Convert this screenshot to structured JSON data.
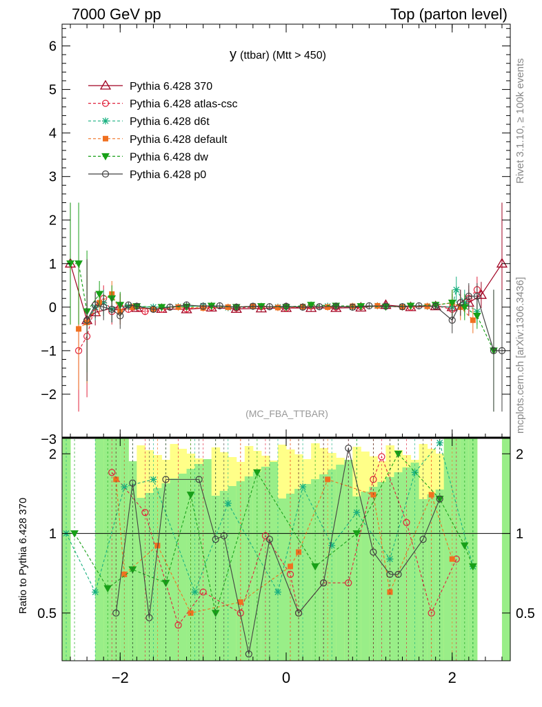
{
  "header": {
    "left": "7000 GeV pp",
    "right": "Top (parton level)"
  },
  "side_labels": {
    "rivet": "Rivet 3.1.10, ≥ 100k events",
    "mcplots": "mcplots.cern.ch [arXiv:1306.3436]"
  },
  "chart_data": {
    "type": "line",
    "title": "y (ttbar) (Mtt > 450)",
    "title_main": "y",
    "title_sub": "(ttbar) (Mtt > 450)",
    "watermark": "(MC_FBA_TTBAR)",
    "xlim": [
      -2.7,
      2.7
    ],
    "ylim": [
      -3,
      6.5
    ],
    "x_ticks": [
      -2,
      0,
      2
    ],
    "x_tick_labels": [
      "−2",
      "0",
      "2"
    ],
    "y_ticks": [
      -2,
      -1,
      0,
      1,
      2,
      3,
      4,
      5,
      6
    ],
    "y_tick_labels": [
      "−2",
      "−1",
      "0",
      "1",
      "2",
      "3",
      "4",
      "5",
      "6"
    ],
    "y_bottom_edge_label": "−3",
    "legend_position": "top-left",
    "series": [
      {
        "name": "Pythia 6.428 370",
        "color": "#a00020",
        "marker": "triangle",
        "x": [
          -2.6,
          -2.4,
          -2.3,
          -2.0,
          -1.8,
          -1.5,
          -1.2,
          -0.9,
          -0.6,
          -0.3,
          0,
          0.3,
          0.6,
          0.9,
          1.2,
          1.5,
          1.8,
          2.0,
          2.2,
          2.35,
          2.6
        ],
        "y": [
          1.0,
          -0.3,
          -0.12,
          0.02,
          -0.02,
          -0.04,
          -0.05,
          -0.01,
          -0.04,
          -0.03,
          -0.02,
          -0.02,
          -0.02,
          -0.01,
          0.05,
          0.0,
          0.02,
          0.0,
          0.1,
          0.28,
          1.0
        ]
      },
      {
        "name": "Pythia 6.428 atlas-csc",
        "color": "#e0203a",
        "marker": "circle-open",
        "x": [
          -2.5,
          -2.4,
          -2.3,
          -2.2,
          -2.1,
          -2.0,
          -1.9,
          -1.7,
          -1.5,
          -1.2,
          -0.9,
          -0.6,
          -0.3,
          0,
          0.3,
          0.6,
          0.9,
          1.2,
          1.5,
          1.8,
          2.0,
          2.1,
          2.2,
          2.3
        ],
        "y": [
          -1.0,
          -0.67,
          0.05,
          0.2,
          -0.1,
          0.0,
          -0.05,
          -0.1,
          -0.05,
          -0.04,
          0.0,
          -0.02,
          0.01,
          -0.02,
          0.02,
          0.0,
          0.01,
          0.02,
          0.0,
          0.03,
          -0.05,
          0.1,
          0.2,
          0.4
        ]
      },
      {
        "name": "Pythia 6.428 d6t",
        "color": "#18b080",
        "marker": "star",
        "x": [
          -2.4,
          -2.3,
          -2.2,
          -2.1,
          -1.9,
          -1.6,
          -1.3,
          -1.0,
          -0.7,
          -0.4,
          -0.1,
          0.2,
          0.5,
          0.8,
          1.1,
          1.4,
          1.7,
          2.0,
          2.05,
          2.15,
          2.3
        ],
        "y": [
          -0.35,
          0.0,
          0.1,
          -0.05,
          0.02,
          0.0,
          0.01,
          0.03,
          -0.01,
          0.02,
          0.0,
          0.01,
          0.02,
          0.0,
          0.03,
          0.01,
          0.02,
          0.0,
          0.4,
          0.1,
          -0.1
        ]
      },
      {
        "name": "Pythia 6.428 default",
        "color": "#f07020",
        "marker": "square",
        "x": [
          -2.5,
          -2.4,
          -2.25,
          -2.1,
          -2.0,
          -1.85,
          -1.6,
          -1.3,
          -1.0,
          -0.7,
          -0.4,
          -0.1,
          0.2,
          0.5,
          0.8,
          1.1,
          1.4,
          1.7,
          2.0,
          2.1,
          2.25
        ],
        "y": [
          -0.5,
          -0.35,
          0.1,
          0.3,
          -0.1,
          0.0,
          -0.05,
          0.0,
          -0.02,
          0.0,
          0.02,
          -0.01,
          0.01,
          0.0,
          0.02,
          0.03,
          0.0,
          0.02,
          0.1,
          0.0,
          -0.3
        ]
      },
      {
        "name": "Pythia 6.428 dw",
        "color": "#18a018",
        "marker": "triangle-down",
        "x": [
          -2.6,
          -2.5,
          -2.4,
          -2.25,
          -2.1,
          -2.0,
          -1.8,
          -1.5,
          -1.2,
          -0.9,
          -0.6,
          -0.3,
          0,
          0.3,
          0.6,
          0.9,
          1.2,
          1.5,
          1.8,
          2.0,
          2.15,
          2.3,
          2.5
        ],
        "y": [
          1.0,
          1.0,
          -0.1,
          0.3,
          0.2,
          0.05,
          0.02,
          0.0,
          0.01,
          0.03,
          0.0,
          0.02,
          0.0,
          0.05,
          0.03,
          0.02,
          0.01,
          0.03,
          0.05,
          0.1,
          0.0,
          -0.2,
          -1.0
        ]
      },
      {
        "name": "Pythia 6.428 p0",
        "color": "#404040",
        "marker": "circle-open",
        "x": [
          -2.4,
          -2.3,
          -2.2,
          -2.1,
          -2.0,
          -1.9,
          -1.8,
          -1.6,
          -1.4,
          -1.2,
          -1.0,
          -0.8,
          -0.6,
          -0.4,
          -0.2,
          0,
          0.2,
          0.4,
          0.6,
          0.8,
          1.0,
          1.2,
          1.4,
          1.6,
          1.8,
          2.0,
          2.1,
          2.2,
          2.3,
          2.5,
          2.6
        ],
        "y": [
          -0.3,
          0.05,
          0.0,
          -0.05,
          -0.2,
          0.05,
          0.02,
          -0.05,
          0.0,
          0.05,
          0.02,
          0.03,
          0.0,
          0.02,
          0.01,
          0.02,
          0.0,
          0.01,
          0.02,
          0.0,
          0.03,
          0.02,
          0.01,
          0.03,
          0.02,
          -0.3,
          0.1,
          0.25,
          0.25,
          -1.0,
          -1.0
        ]
      }
    ],
    "ratio": {
      "ylabel": "Ratio to Pythia 6.428 370",
      "ylim": [
        0.33,
        2.3
      ],
      "y_ticks": [
        0.5,
        1,
        2
      ],
      "y_tick_labels": [
        "0.5",
        "1",
        "2"
      ],
      "series": [
        {
          "name": "Pythia 6.428 atlas-csc",
          "x": [
            -2.1,
            -1.7,
            -1.3,
            -1.0,
            -0.55,
            -0.25,
            0.05,
            0.15,
            0.45,
            0.75,
            1.05,
            1.15,
            1.45,
            1.75,
            2.05
          ],
          "y": [
            1.7,
            1.2,
            0.45,
            0.6,
            0.5,
            0.98,
            0.7,
            0.5,
            0.65,
            0.65,
            1.6,
            1.95,
            1.1,
            0.5,
            0.8
          ]
        },
        {
          "name": "Pythia 6.428 d6t",
          "x": [
            -2.65,
            -2.3,
            -1.95,
            -1.6,
            -1.1,
            -0.7,
            -0.1,
            0.2,
            0.55,
            0.85,
            1.25,
            1.55,
            1.85,
            2.25
          ],
          "y": [
            1.0,
            0.6,
            1.5,
            1.6,
            0.6,
            1.3,
            0.6,
            1.5,
            0.9,
            1.2,
            0.8,
            1.7,
            2.2,
            0.75
          ]
        },
        {
          "name": "Pythia 6.428 default",
          "x": [
            -2.05,
            -1.95,
            -1.55,
            -1.15,
            -0.55,
            0.05,
            0.15,
            0.5,
            1.05,
            1.25,
            1.75,
            2.0
          ],
          "y": [
            1.6,
            0.7,
            0.9,
            0.5,
            0.55,
            0.75,
            0.85,
            1.6,
            1.4,
            0.6,
            1.4,
            0.8
          ]
        },
        {
          "name": "Pythia 6.428 dw",
          "x": [
            -2.55,
            -2.15,
            -1.85,
            -1.45,
            -1.15,
            -0.85,
            -0.35,
            0.35,
            0.85,
            1.35,
            1.85,
            2.15,
            2.25
          ],
          "y": [
            1.0,
            0.62,
            0.73,
            0.65,
            1.4,
            0.5,
            1.7,
            0.75,
            1.0,
            2.0,
            1.35,
            0.9,
            0.75
          ]
        },
        {
          "name": "Pythia 6.428 p0",
          "x": [
            -2.05,
            -1.85,
            -1.65,
            -1.45,
            -1.05,
            -0.85,
            -0.75,
            -0.45,
            -0.2,
            0.15,
            0.45,
            0.75,
            1.05,
            1.25,
            1.35,
            1.65,
            1.85
          ],
          "y": [
            0.5,
            1.55,
            0.48,
            1.6,
            1.6,
            0.95,
            0.98,
            0.35,
            0.95,
            0.5,
            0.65,
            2.1,
            0.85,
            0.7,
            0.7,
            0.95,
            1.35
          ]
        }
      ]
    }
  }
}
